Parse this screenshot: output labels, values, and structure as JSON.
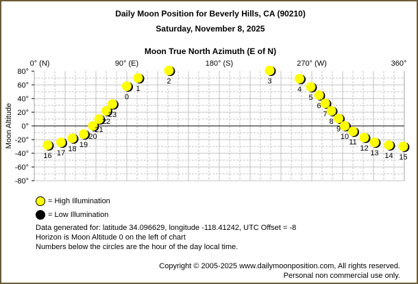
{
  "header": {
    "title": "Daily Moon Position for Beverly Hills, CA (90210)",
    "date": "Saturday, November 8, 2025"
  },
  "colors": {
    "high_illumination": "#ffff00",
    "low_illumination": "#000000",
    "grid": "#c0c0c0",
    "frame": "#6b5a35"
  },
  "chart_data": {
    "type": "scatter",
    "title": "Moon True North Azimuth (E of N)",
    "xlabel": "Moon True North Azimuth (E of N)",
    "ylabel": "Moon Altitude",
    "xlim": [
      0,
      360
    ],
    "ylim": [
      -80,
      80
    ],
    "x_ticks": [
      "0° (N)",
      "90° (E)",
      "180° (S)",
      "270° (W)",
      "360°"
    ],
    "y_ticks": [
      "80°",
      "60°",
      "40°",
      "20°",
      "0°",
      "-20°",
      "-40°",
      "-60°",
      "-80°"
    ],
    "grid": true,
    "legend": [
      "= High Illumination",
      "= Low Illumination"
    ],
    "points": [
      {
        "hour": "16",
        "azimuth": 13,
        "altitude": -28,
        "illum": "high"
      },
      {
        "hour": "17",
        "azimuth": 26,
        "altitude": -24,
        "illum": "high"
      },
      {
        "hour": "18",
        "azimuth": 37,
        "altitude": -18,
        "illum": "high"
      },
      {
        "hour": "19",
        "azimuth": 48,
        "altitude": -12,
        "illum": "high"
      },
      {
        "hour": "20",
        "azimuth": 57,
        "altitude": 0,
        "illum": "high"
      },
      {
        "hour": "21",
        "azimuth": 63,
        "altitude": 10,
        "illum": "high"
      },
      {
        "hour": "22",
        "azimuth": 70,
        "altitude": 22,
        "illum": "high"
      },
      {
        "hour": "23",
        "azimuth": 76,
        "altitude": 32,
        "illum": "high"
      },
      {
        "hour": "0",
        "azimuth": 90,
        "altitude": 58,
        "illum": "high"
      },
      {
        "hour": "1",
        "azimuth": 101,
        "altitude": 70,
        "illum": "high"
      },
      {
        "hour": "2",
        "azimuth": 131,
        "altitude": 81,
        "illum": "high"
      },
      {
        "hour": "3",
        "azimuth": 229,
        "altitude": 81,
        "illum": "high"
      },
      {
        "hour": "4",
        "azimuth": 258,
        "altitude": 69,
        "illum": "high"
      },
      {
        "hour": "5",
        "azimuth": 269,
        "altitude": 57,
        "illum": "high"
      },
      {
        "hour": "6",
        "azimuth": 277,
        "altitude": 45,
        "illum": "high"
      },
      {
        "hour": "7",
        "azimuth": 283,
        "altitude": 33,
        "illum": "high"
      },
      {
        "hour": "8",
        "azimuth": 289,
        "altitude": 22,
        "illum": "high"
      },
      {
        "hour": "9",
        "azimuth": 296,
        "altitude": 11,
        "illum": "high"
      },
      {
        "hour": "10",
        "azimuth": 302,
        "altitude": 0,
        "illum": "high"
      },
      {
        "hour": "11",
        "azimuth": 310,
        "altitude": -8,
        "illum": "high"
      },
      {
        "hour": "12",
        "azimuth": 321,
        "altitude": -17,
        "illum": "high"
      },
      {
        "hour": "13",
        "azimuth": 331,
        "altitude": -24,
        "illum": "high"
      },
      {
        "hour": "14",
        "azimuth": 345,
        "altitude": -28,
        "illum": "high"
      },
      {
        "hour": "15",
        "azimuth": 359,
        "altitude": -30,
        "illum": "high"
      }
    ]
  },
  "legend": {
    "high": "= High Illumination",
    "low": "= Low Illumination"
  },
  "info": {
    "line1": "Data generated for: latitude 34.096629, longitude -118.41242, UTC Offset = -8",
    "line2": "Horizon is Moon Altitude 0 on the left of chart",
    "line3": "Numbers below the circles are the hour of the day local time."
  },
  "footer": {
    "copyright": "Copyright © 2005-2025 www.dailymoonposition.com, All rights reserved.",
    "usage": "Personal non commercial use only."
  }
}
